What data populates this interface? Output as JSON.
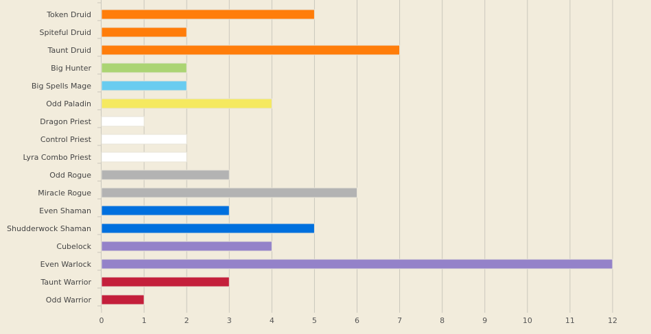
{
  "chart_data": {
    "type": "bar",
    "orientation": "horizontal",
    "categories": [
      "Token Druid",
      "Spiteful Druid",
      "Taunt Druid",
      "Big Hunter",
      "Big Spells Mage",
      "Odd Paladin",
      "Dragon Priest",
      "Control Priest",
      "Lyra Combo Priest",
      "Odd Rogue",
      "Miracle Rogue",
      "Even Shaman",
      "Shudderwock Shaman",
      "Cubelock",
      "Even Warlock",
      "Taunt Warrior",
      "Odd Warrior"
    ],
    "values": [
      5,
      2,
      7,
      2,
      2,
      4,
      1,
      2,
      2,
      3,
      6,
      3,
      5,
      4,
      12,
      3,
      1
    ],
    "colors": [
      "#ff7d0a",
      "#ff7d0a",
      "#ff7d0a",
      "#abd473",
      "#69ccf0",
      "#f5e960",
      "#ffffff",
      "#ffffff",
      "#ffffff",
      "#b3b3b3",
      "#b3b3b3",
      "#0070de",
      "#0070de",
      "#9482c9",
      "#9482c9",
      "#c41f3b",
      "#c41f3b"
    ],
    "xticks": [
      "0",
      "1",
      "2",
      "3",
      "4",
      "5",
      "6",
      "7",
      "8",
      "9",
      "10",
      "11",
      "12"
    ],
    "xlim": [
      0,
      12
    ],
    "title": "",
    "xlabel": "",
    "ylabel": "",
    "grid": "vertical",
    "legend": "none"
  }
}
